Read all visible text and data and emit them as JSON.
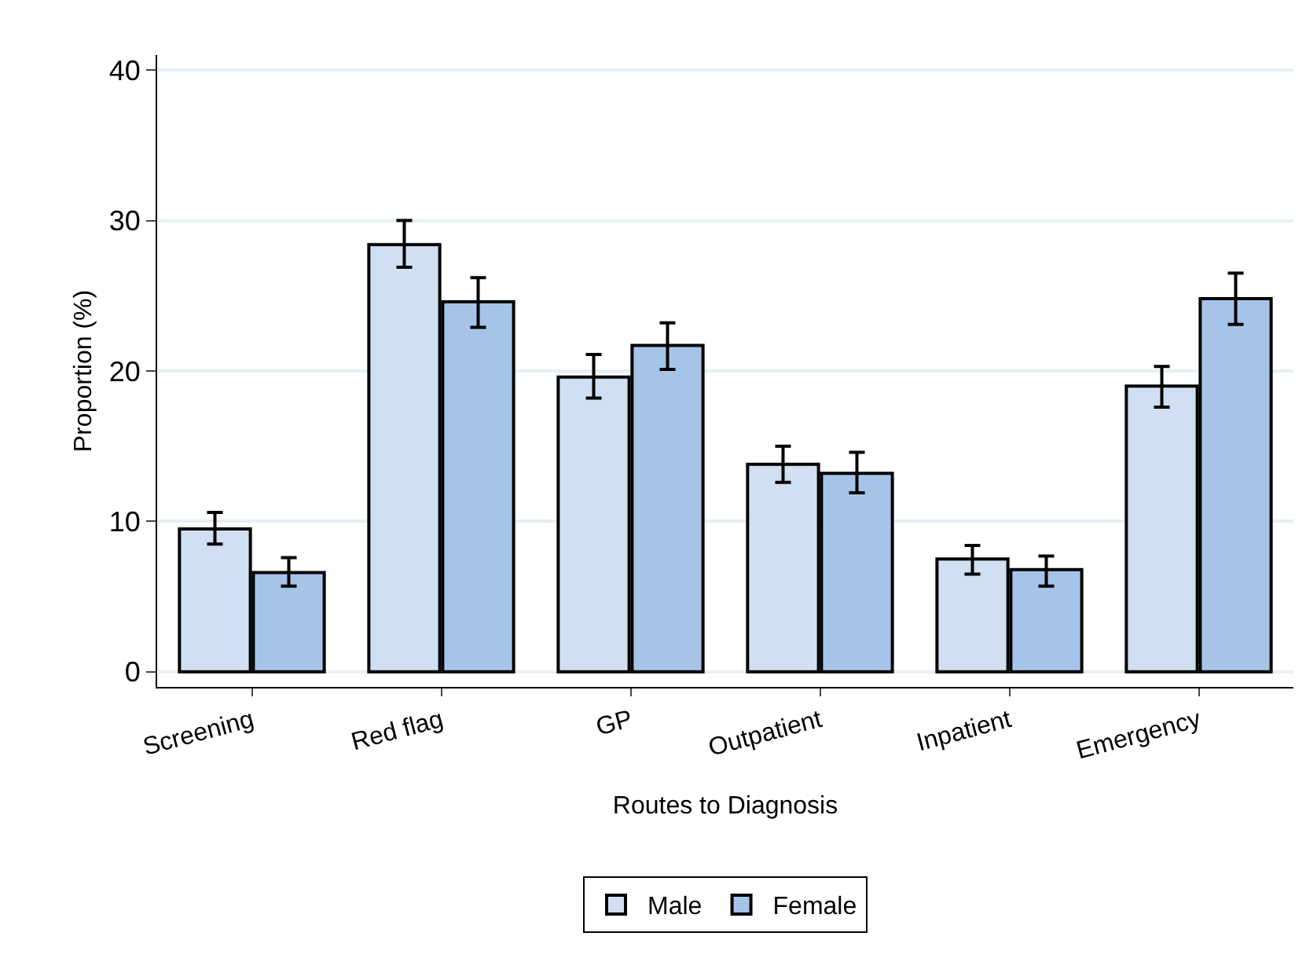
{
  "chart_data": {
    "type": "bar",
    "xlabel": "Routes to Diagnosis",
    "ylabel": "Proportion (%)",
    "categories": [
      "Screening",
      "Red flag",
      "GP",
      "Outpatient",
      "Inpatient",
      "Emergency"
    ],
    "series": [
      {
        "name": "Male",
        "color": "#d0e0f2",
        "values": [
          9.5,
          28.4,
          19.6,
          13.8,
          7.5,
          19.0
        ],
        "errors": [
          [
            8.5,
            10.6
          ],
          [
            26.9,
            30.0
          ],
          [
            18.2,
            21.1
          ],
          [
            12.6,
            15.0
          ],
          [
            6.5,
            8.4
          ],
          [
            17.6,
            20.3
          ]
        ]
      },
      {
        "name": "Female",
        "color": "#a5c4e8",
        "values": [
          6.6,
          24.6,
          21.7,
          13.2,
          6.8,
          24.8
        ],
        "errors": [
          [
            5.7,
            7.6
          ],
          [
            22.9,
            26.2
          ],
          [
            20.1,
            23.2
          ],
          [
            11.9,
            14.6
          ],
          [
            5.7,
            7.7
          ],
          [
            23.1,
            26.5
          ]
        ]
      }
    ],
    "ylim": [
      -1,
      41
    ],
    "yticks": [
      0,
      10,
      20,
      30,
      40
    ],
    "grid": "y",
    "legend": "bottom"
  }
}
